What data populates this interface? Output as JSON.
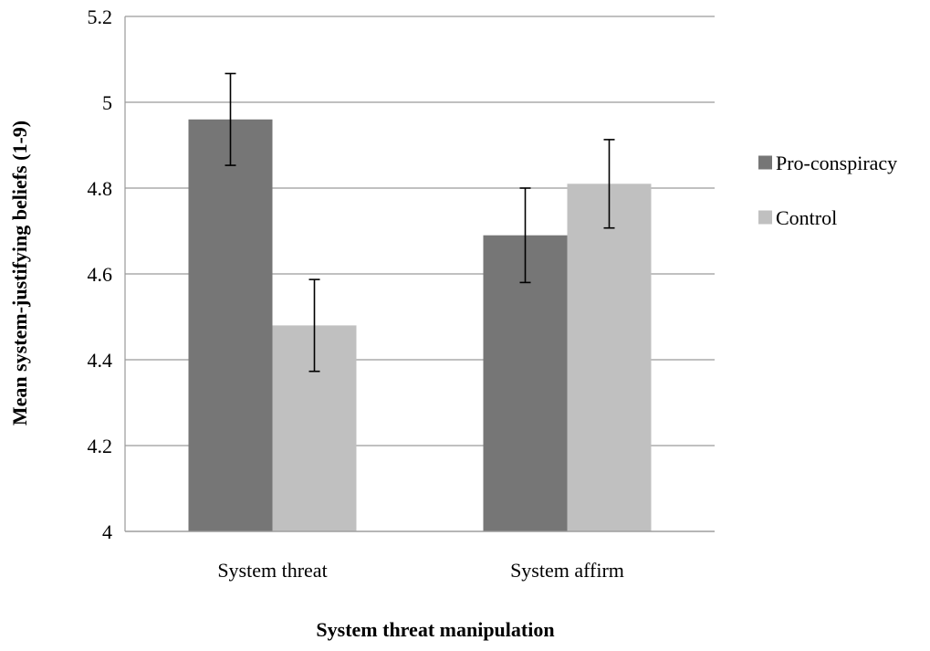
{
  "chart_data": {
    "type": "bar",
    "title": "",
    "xlabel": "System threat manipulation",
    "ylabel": "Mean system-justifying beliefs (1-9)",
    "categories": [
      "System threat",
      "System affirm"
    ],
    "series": [
      {
        "name": "Pro-conspiracy",
        "color": "#767676",
        "values": [
          4.96,
          4.69
        ],
        "error": [
          0.107,
          0.11
        ]
      },
      {
        "name": "Control",
        "color": "#c0c0c0",
        "values": [
          4.48,
          4.81
        ],
        "error": [
          0.107,
          0.103
        ]
      }
    ],
    "ylim": [
      4,
      5.2
    ],
    "yticks": [
      "4",
      "4.2",
      "4.4",
      "4.6",
      "4.8",
      "5",
      "5.2"
    ],
    "grid": true,
    "gridline_color": "#9a9a9a",
    "legend_position": "right"
  }
}
